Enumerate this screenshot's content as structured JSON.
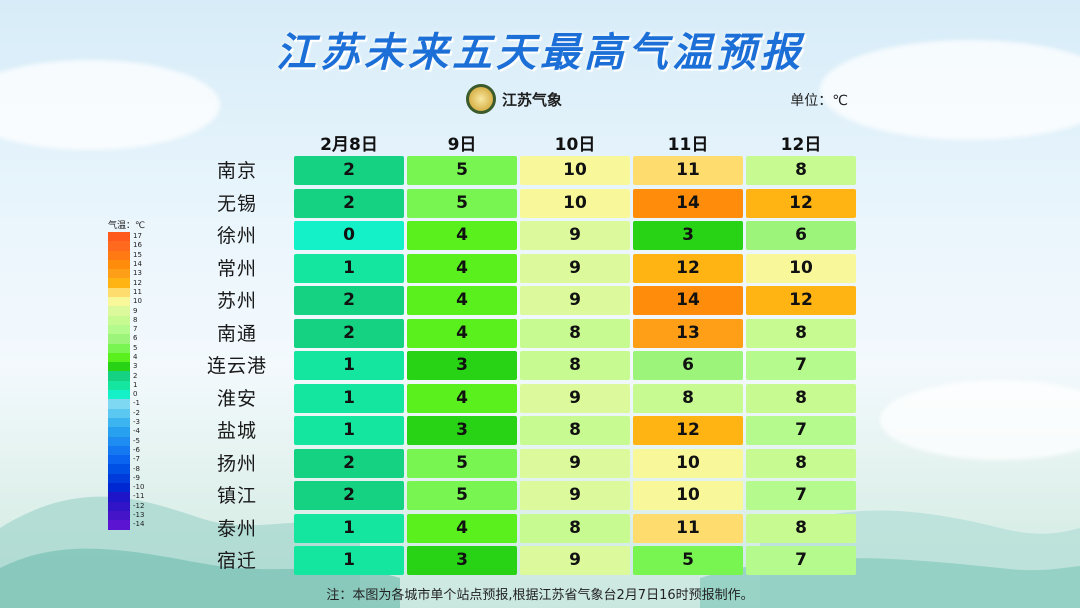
{
  "title": "江苏未来五天最高气温预报",
  "logo_text": "江苏气象",
  "unit_label": "单位：℃",
  "note": "注：本图为各城市单个站点预报,根据江苏省气象台2月7日16时预报制作。",
  "legend": {
    "title": "气温：℃",
    "levels": [
      {
        "label": "17",
        "color": "#ff5a1e"
      },
      {
        "label": "16",
        "color": "#ff6a1e"
      },
      {
        "label": "15",
        "color": "#ff7a12"
      },
      {
        "label": "14",
        "color": "#ff8c0a"
      },
      {
        "label": "13",
        "color": "#ff9f18"
      },
      {
        "label": "12",
        "color": "#ffb414"
      },
      {
        "label": "11",
        "color": "#ffdc6e"
      },
      {
        "label": "10",
        "color": "#f8f89a"
      },
      {
        "label": "9",
        "color": "#dcfa9c"
      },
      {
        "label": "8",
        "color": "#c8fa92"
      },
      {
        "label": "7",
        "color": "#b4fa8c"
      },
      {
        "label": "6",
        "color": "#9cf57a"
      },
      {
        "label": "5",
        "color": "#78f550"
      },
      {
        "label": "4",
        "color": "#5af01e"
      },
      {
        "label": "3",
        "color": "#28d214"
      },
      {
        "label": "2",
        "color": "#14d282"
      },
      {
        "label": "1",
        "color": "#14e6a0"
      },
      {
        "label": "0",
        "color": "#14f0c8"
      },
      {
        "label": "-1",
        "color": "#7fd8f2"
      },
      {
        "label": "-2",
        "color": "#5ac8f0"
      },
      {
        "label": "-3",
        "color": "#3cb4f0"
      },
      {
        "label": "-4",
        "color": "#28a0f0"
      },
      {
        "label": "-5",
        "color": "#1e8cf0"
      },
      {
        "label": "-6",
        "color": "#1478f0"
      },
      {
        "label": "-7",
        "color": "#0a64f0"
      },
      {
        "label": "-8",
        "color": "#0050e6"
      },
      {
        "label": "-9",
        "color": "#003cdc"
      },
      {
        "label": "-10",
        "color": "#0028d2"
      },
      {
        "label": "-11",
        "color": "#1e14c8"
      },
      {
        "label": "-12",
        "color": "#3214c8"
      },
      {
        "label": "-13",
        "color": "#4614c8"
      },
      {
        "label": "-14",
        "color": "#5a14d2"
      }
    ]
  },
  "chart_data": {
    "type": "table",
    "title": "江苏未来五天最高气温预报",
    "columns": [
      "2月8日",
      "9日",
      "10日",
      "11日",
      "12日"
    ],
    "rows": [
      {
        "city": "南京",
        "values": [
          2,
          5,
          10,
          11,
          8
        ]
      },
      {
        "city": "无锡",
        "values": [
          2,
          5,
          10,
          14,
          12
        ]
      },
      {
        "city": "徐州",
        "values": [
          0,
          4,
          9,
          3,
          6
        ]
      },
      {
        "city": "常州",
        "values": [
          1,
          4,
          9,
          12,
          10
        ]
      },
      {
        "city": "苏州",
        "values": [
          2,
          4,
          9,
          14,
          12
        ]
      },
      {
        "city": "南通",
        "values": [
          2,
          4,
          8,
          13,
          8
        ]
      },
      {
        "city": "连云港",
        "values": [
          1,
          3,
          8,
          6,
          7
        ]
      },
      {
        "city": "淮安",
        "values": [
          1,
          4,
          9,
          8,
          8
        ]
      },
      {
        "city": "盐城",
        "values": [
          1,
          3,
          8,
          12,
          7
        ]
      },
      {
        "city": "扬州",
        "values": [
          2,
          5,
          9,
          10,
          8
        ]
      },
      {
        "city": "镇江",
        "values": [
          2,
          5,
          9,
          10,
          7
        ]
      },
      {
        "city": "泰州",
        "values": [
          1,
          4,
          8,
          11,
          8
        ]
      },
      {
        "city": "宿迁",
        "values": [
          1,
          3,
          9,
          5,
          7
        ]
      }
    ]
  }
}
